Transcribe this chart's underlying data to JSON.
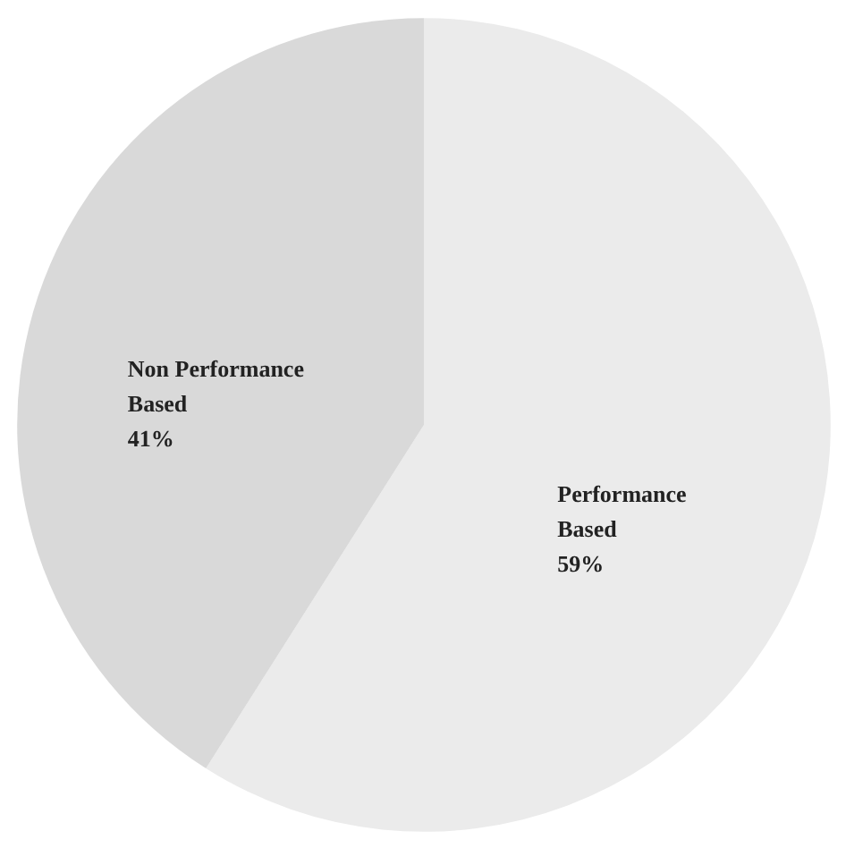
{
  "chart_data": {
    "type": "pie",
    "categories": [
      "Performance Based",
      "Non Performance Based"
    ],
    "values": [
      59,
      41
    ],
    "colors": [
      "#ebebeb",
      "#d9d9d9"
    ],
    "value_labels": [
      "59%",
      "41%"
    ]
  }
}
